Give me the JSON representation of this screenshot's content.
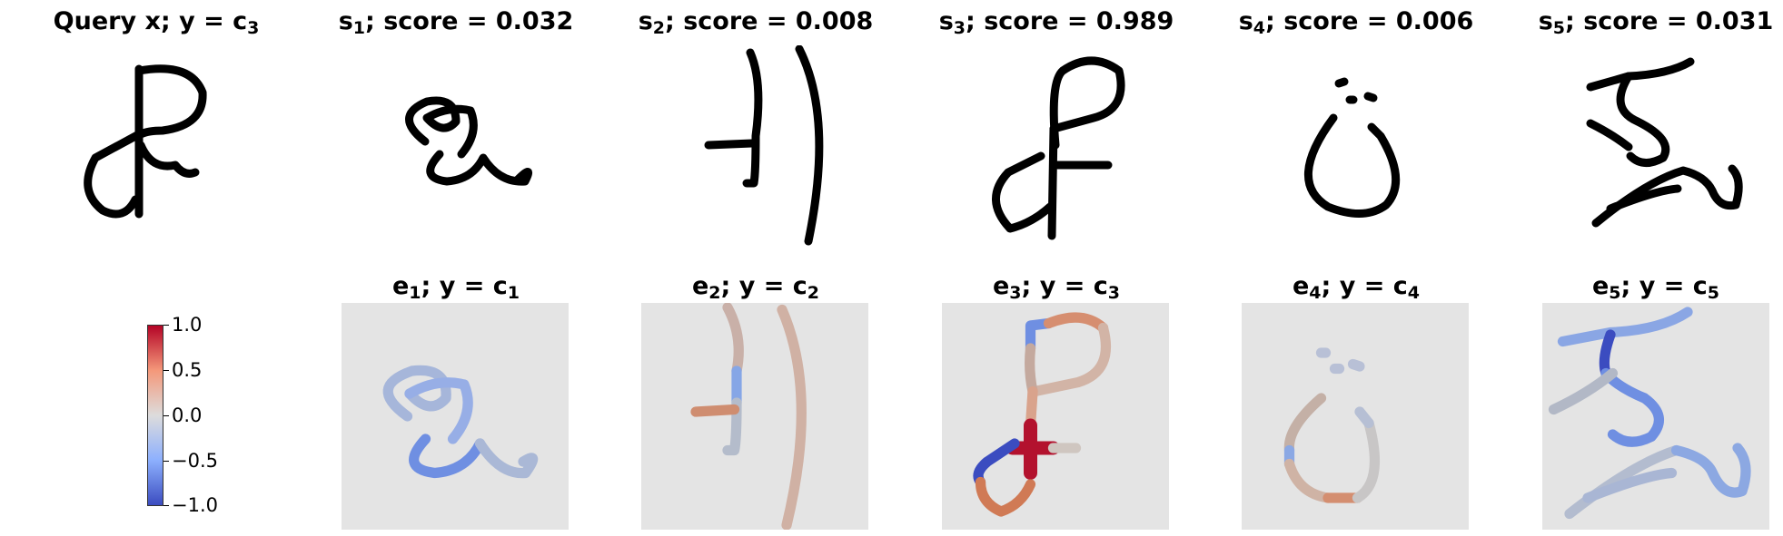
{
  "query_title": {
    "pre": "Query x; y = c",
    "sub": "3"
  },
  "support": [
    {
      "s": "s",
      "i": "1",
      "score_text": "; score = 0.032"
    },
    {
      "s": "s",
      "i": "2",
      "score_text": "; score = 0.008"
    },
    {
      "s": "s",
      "i": "3",
      "score_text": "; score = 0.989"
    },
    {
      "s": "s",
      "i": "4",
      "score_text": "; score = 0.006"
    },
    {
      "s": "s",
      "i": "5",
      "score_text": "; score = 0.031"
    }
  ],
  "explanations": [
    {
      "e": "e",
      "i": "1",
      "mid": "; y = c",
      "c": "1"
    },
    {
      "e": "e",
      "i": "2",
      "mid": "; y = c",
      "c": "2"
    },
    {
      "e": "e",
      "i": "3",
      "mid": "; y = c",
      "c": "3"
    },
    {
      "e": "e",
      "i": "4",
      "mid": "; y = c",
      "c": "4"
    },
    {
      "e": "e",
      "i": "5",
      "mid": "; y = c",
      "c": "5"
    }
  ],
  "colorbar": {
    "ticks": [
      "1.0",
      "0.5",
      "0.0",
      "−0.5",
      "−1.0"
    ],
    "min": -1.0,
    "max": 1.0,
    "colors": {
      "high": "#b40426",
      "mid": "#dddcdc",
      "low": "#3b4cc0"
    }
  }
}
